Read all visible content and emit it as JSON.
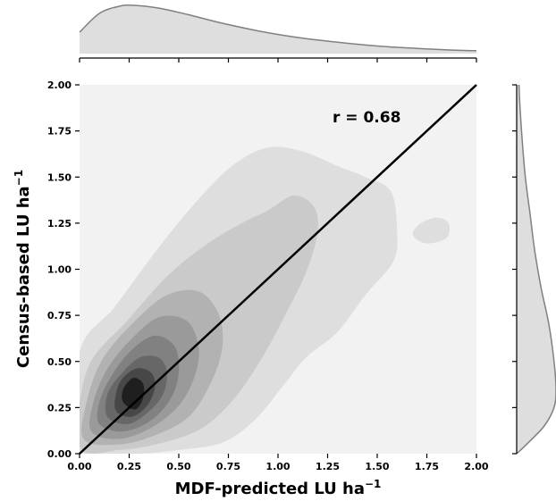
{
  "chart_data": {
    "type": "kde-joint",
    "xlabel": "MDF-predicted LU ha",
    "ylabel": "Census-based LU ha",
    "label_superscript": "−1",
    "xlim": [
      0,
      2
    ],
    "ylim": [
      0,
      2
    ],
    "xticks": [
      "0.00",
      "0.25",
      "0.50",
      "0.75",
      "1.00",
      "1.25",
      "1.50",
      "1.75",
      "2.00"
    ],
    "yticks": [
      "0.00",
      "0.25",
      "0.50",
      "0.75",
      "1.00",
      "1.25",
      "1.50",
      "1.75",
      "2.00"
    ],
    "annotation": "r = 0.68",
    "reference_line": {
      "x": [
        0,
        2
      ],
      "y": [
        0,
        2
      ]
    },
    "density_peak": {
      "x": 0.27,
      "y": 0.33
    },
    "contours": [
      {
        "level": 1,
        "fill": "#dedede",
        "points": [
          [
            0,
            0
          ],
          [
            0.3,
            0
          ],
          [
            0.5,
            0.02
          ],
          [
            0.72,
            0.06
          ],
          [
            0.88,
            0.18
          ],
          [
            1.02,
            0.36
          ],
          [
            1.14,
            0.52
          ],
          [
            1.3,
            0.66
          ],
          [
            1.44,
            0.86
          ],
          [
            1.58,
            1.04
          ],
          [
            1.6,
            1.2
          ],
          [
            1.57,
            1.42
          ],
          [
            1.44,
            1.5
          ],
          [
            1.3,
            1.56
          ],
          [
            1.12,
            1.64
          ],
          [
            0.95,
            1.66
          ],
          [
            0.78,
            1.57
          ],
          [
            0.6,
            1.38
          ],
          [
            0.4,
            1.12
          ],
          [
            0.18,
            0.8
          ],
          [
            0,
            0.55
          ]
        ]
      },
      {
        "level": 1,
        "fill": "#dedede",
        "points": [
          [
            1.68,
            1.2
          ],
          [
            1.72,
            1.25
          ],
          [
            1.8,
            1.28
          ],
          [
            1.86,
            1.25
          ],
          [
            1.85,
            1.17
          ],
          [
            1.76,
            1.14
          ],
          [
            1.7,
            1.16
          ]
        ]
      },
      {
        "level": 2,
        "fill": "#cacaca",
        "points": [
          [
            0,
            0.04
          ],
          [
            0.2,
            0.02
          ],
          [
            0.42,
            0.06
          ],
          [
            0.62,
            0.14
          ],
          [
            0.78,
            0.3
          ],
          [
            0.92,
            0.52
          ],
          [
            1.04,
            0.76
          ],
          [
            1.14,
            0.98
          ],
          [
            1.2,
            1.2
          ],
          [
            1.18,
            1.34
          ],
          [
            1.08,
            1.4
          ],
          [
            0.95,
            1.32
          ],
          [
            0.8,
            1.24
          ],
          [
            0.62,
            1.12
          ],
          [
            0.44,
            0.96
          ],
          [
            0.24,
            0.72
          ],
          [
            0.04,
            0.46
          ]
        ]
      },
      {
        "level": 3,
        "fill": "#b2b2b2",
        "points": [
          [
            0.02,
            0.08
          ],
          [
            0.2,
            0.05
          ],
          [
            0.38,
            0.1
          ],
          [
            0.55,
            0.2
          ],
          [
            0.66,
            0.38
          ],
          [
            0.72,
            0.58
          ],
          [
            0.7,
            0.76
          ],
          [
            0.6,
            0.88
          ],
          [
            0.44,
            0.86
          ],
          [
            0.28,
            0.72
          ],
          [
            0.12,
            0.52
          ],
          [
            0.04,
            0.3
          ]
        ]
      },
      {
        "level": 4,
        "fill": "#9a9a9a",
        "points": [
          [
            0.06,
            0.12
          ],
          [
            0.2,
            0.08
          ],
          [
            0.36,
            0.14
          ],
          [
            0.5,
            0.26
          ],
          [
            0.58,
            0.42
          ],
          [
            0.6,
            0.58
          ],
          [
            0.54,
            0.72
          ],
          [
            0.4,
            0.74
          ],
          [
            0.26,
            0.62
          ],
          [
            0.14,
            0.46
          ],
          [
            0.07,
            0.28
          ]
        ]
      },
      {
        "level": 5,
        "fill": "#818181",
        "points": [
          [
            0.1,
            0.16
          ],
          [
            0.22,
            0.12
          ],
          [
            0.36,
            0.18
          ],
          [
            0.46,
            0.3
          ],
          [
            0.5,
            0.44
          ],
          [
            0.48,
            0.58
          ],
          [
            0.38,
            0.64
          ],
          [
            0.26,
            0.56
          ],
          [
            0.16,
            0.42
          ],
          [
            0.1,
            0.28
          ]
        ]
      },
      {
        "level": 6,
        "fill": "#676767",
        "points": [
          [
            0.14,
            0.2
          ],
          [
            0.24,
            0.16
          ],
          [
            0.34,
            0.22
          ],
          [
            0.42,
            0.32
          ],
          [
            0.44,
            0.44
          ],
          [
            0.4,
            0.52
          ],
          [
            0.3,
            0.52
          ],
          [
            0.2,
            0.42
          ],
          [
            0.14,
            0.32
          ]
        ]
      },
      {
        "level": 7,
        "fill": "#474747",
        "points": [
          [
            0.18,
            0.24
          ],
          [
            0.26,
            0.2
          ],
          [
            0.34,
            0.26
          ],
          [
            0.38,
            0.36
          ],
          [
            0.36,
            0.44
          ],
          [
            0.28,
            0.46
          ],
          [
            0.2,
            0.38
          ]
        ]
      },
      {
        "level": 8,
        "fill": "#1f1f1f",
        "points": [
          [
            0.22,
            0.28
          ],
          [
            0.28,
            0.24
          ],
          [
            0.32,
            0.3
          ],
          [
            0.32,
            0.38
          ],
          [
            0.27,
            0.41
          ],
          [
            0.22,
            0.35
          ]
        ]
      }
    ],
    "marginal_x": {
      "x": [
        0,
        0.1,
        0.2,
        0.27,
        0.4,
        0.55,
        0.7,
        0.9,
        1.1,
        1.3,
        1.5,
        1.7,
        1.9,
        2.0
      ],
      "density": [
        0.45,
        0.85,
        1.0,
        1.02,
        0.96,
        0.82,
        0.66,
        0.48,
        0.34,
        0.24,
        0.16,
        0.11,
        0.07,
        0.06
      ]
    },
    "marginal_y": {
      "y": [
        0,
        0.05,
        0.15,
        0.25,
        0.35,
        0.5,
        0.7,
        0.9,
        1.1,
        1.3,
        1.5,
        1.7,
        1.9,
        2.0
      ],
      "density": [
        0.0,
        0.25,
        0.7,
        0.95,
        1.0,
        0.95,
        0.82,
        0.62,
        0.46,
        0.34,
        0.22,
        0.14,
        0.08,
        0.06
      ]
    },
    "colors": {
      "plot_bg": "#f2f2f2",
      "marginal_fill": "#dedede",
      "marginal_line": "#808080",
      "line": "#000000"
    }
  }
}
